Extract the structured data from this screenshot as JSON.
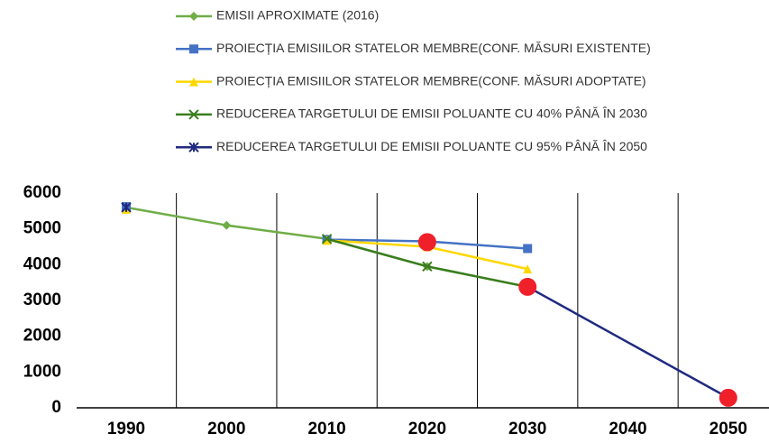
{
  "chart_data": {
    "type": "line",
    "categories": [
      "1990",
      "2000",
      "2010",
      "2020",
      "2030",
      "2040",
      "2050"
    ],
    "ylim": [
      0,
      6000
    ],
    "yticks": [
      0,
      1000,
      2000,
      3000,
      4000,
      5000,
      6000
    ],
    "series": [
      {
        "name": "EMISII APROXIMATE (2016)",
        "color": "#70ad47",
        "marker": "diamond",
        "values": [
          5600,
          5100,
          4720,
          3950,
          3380,
          null,
          null
        ]
      },
      {
        "name": "PROIECȚIA EMISIILOR STATELOR MEMBRE(CONF. MĂSURI EXISTENTE)",
        "color": "#4472c4",
        "marker": "square",
        "values": [
          5620,
          null,
          4700,
          4650,
          4450,
          null,
          null
        ]
      },
      {
        "name": "PROIECȚIA EMISIILOR STATELOR MEMBRE(CONF. MĂSURI ADOPTATE)",
        "color": "#ffd700",
        "marker": "triangle",
        "values": [
          5550,
          null,
          4680,
          4500,
          3880,
          null,
          null
        ]
      },
      {
        "name": "REDUCEREA TARGETULUI DE EMISII POLUANTE CU 40% PÂNĂ ÎN 2030",
        "color": "#3a7d1e",
        "marker": "x",
        "values": [
          null,
          null,
          4720,
          3950,
          3380,
          null,
          null
        ]
      },
      {
        "name": "REDUCEREA TARGETULUI DE EMISII POLUANTE CU 95% PÂNĂ ÎN 2050",
        "color": "#1f2a80",
        "marker": "star",
        "values": [
          5600,
          null,
          null,
          null,
          3380,
          1830,
          280
        ]
      }
    ],
    "highlights": {
      "color": "#f0202a",
      "categories": [
        "2020",
        "2030",
        "2050"
      ],
      "values": [
        4630,
        3380,
        280
      ]
    }
  }
}
